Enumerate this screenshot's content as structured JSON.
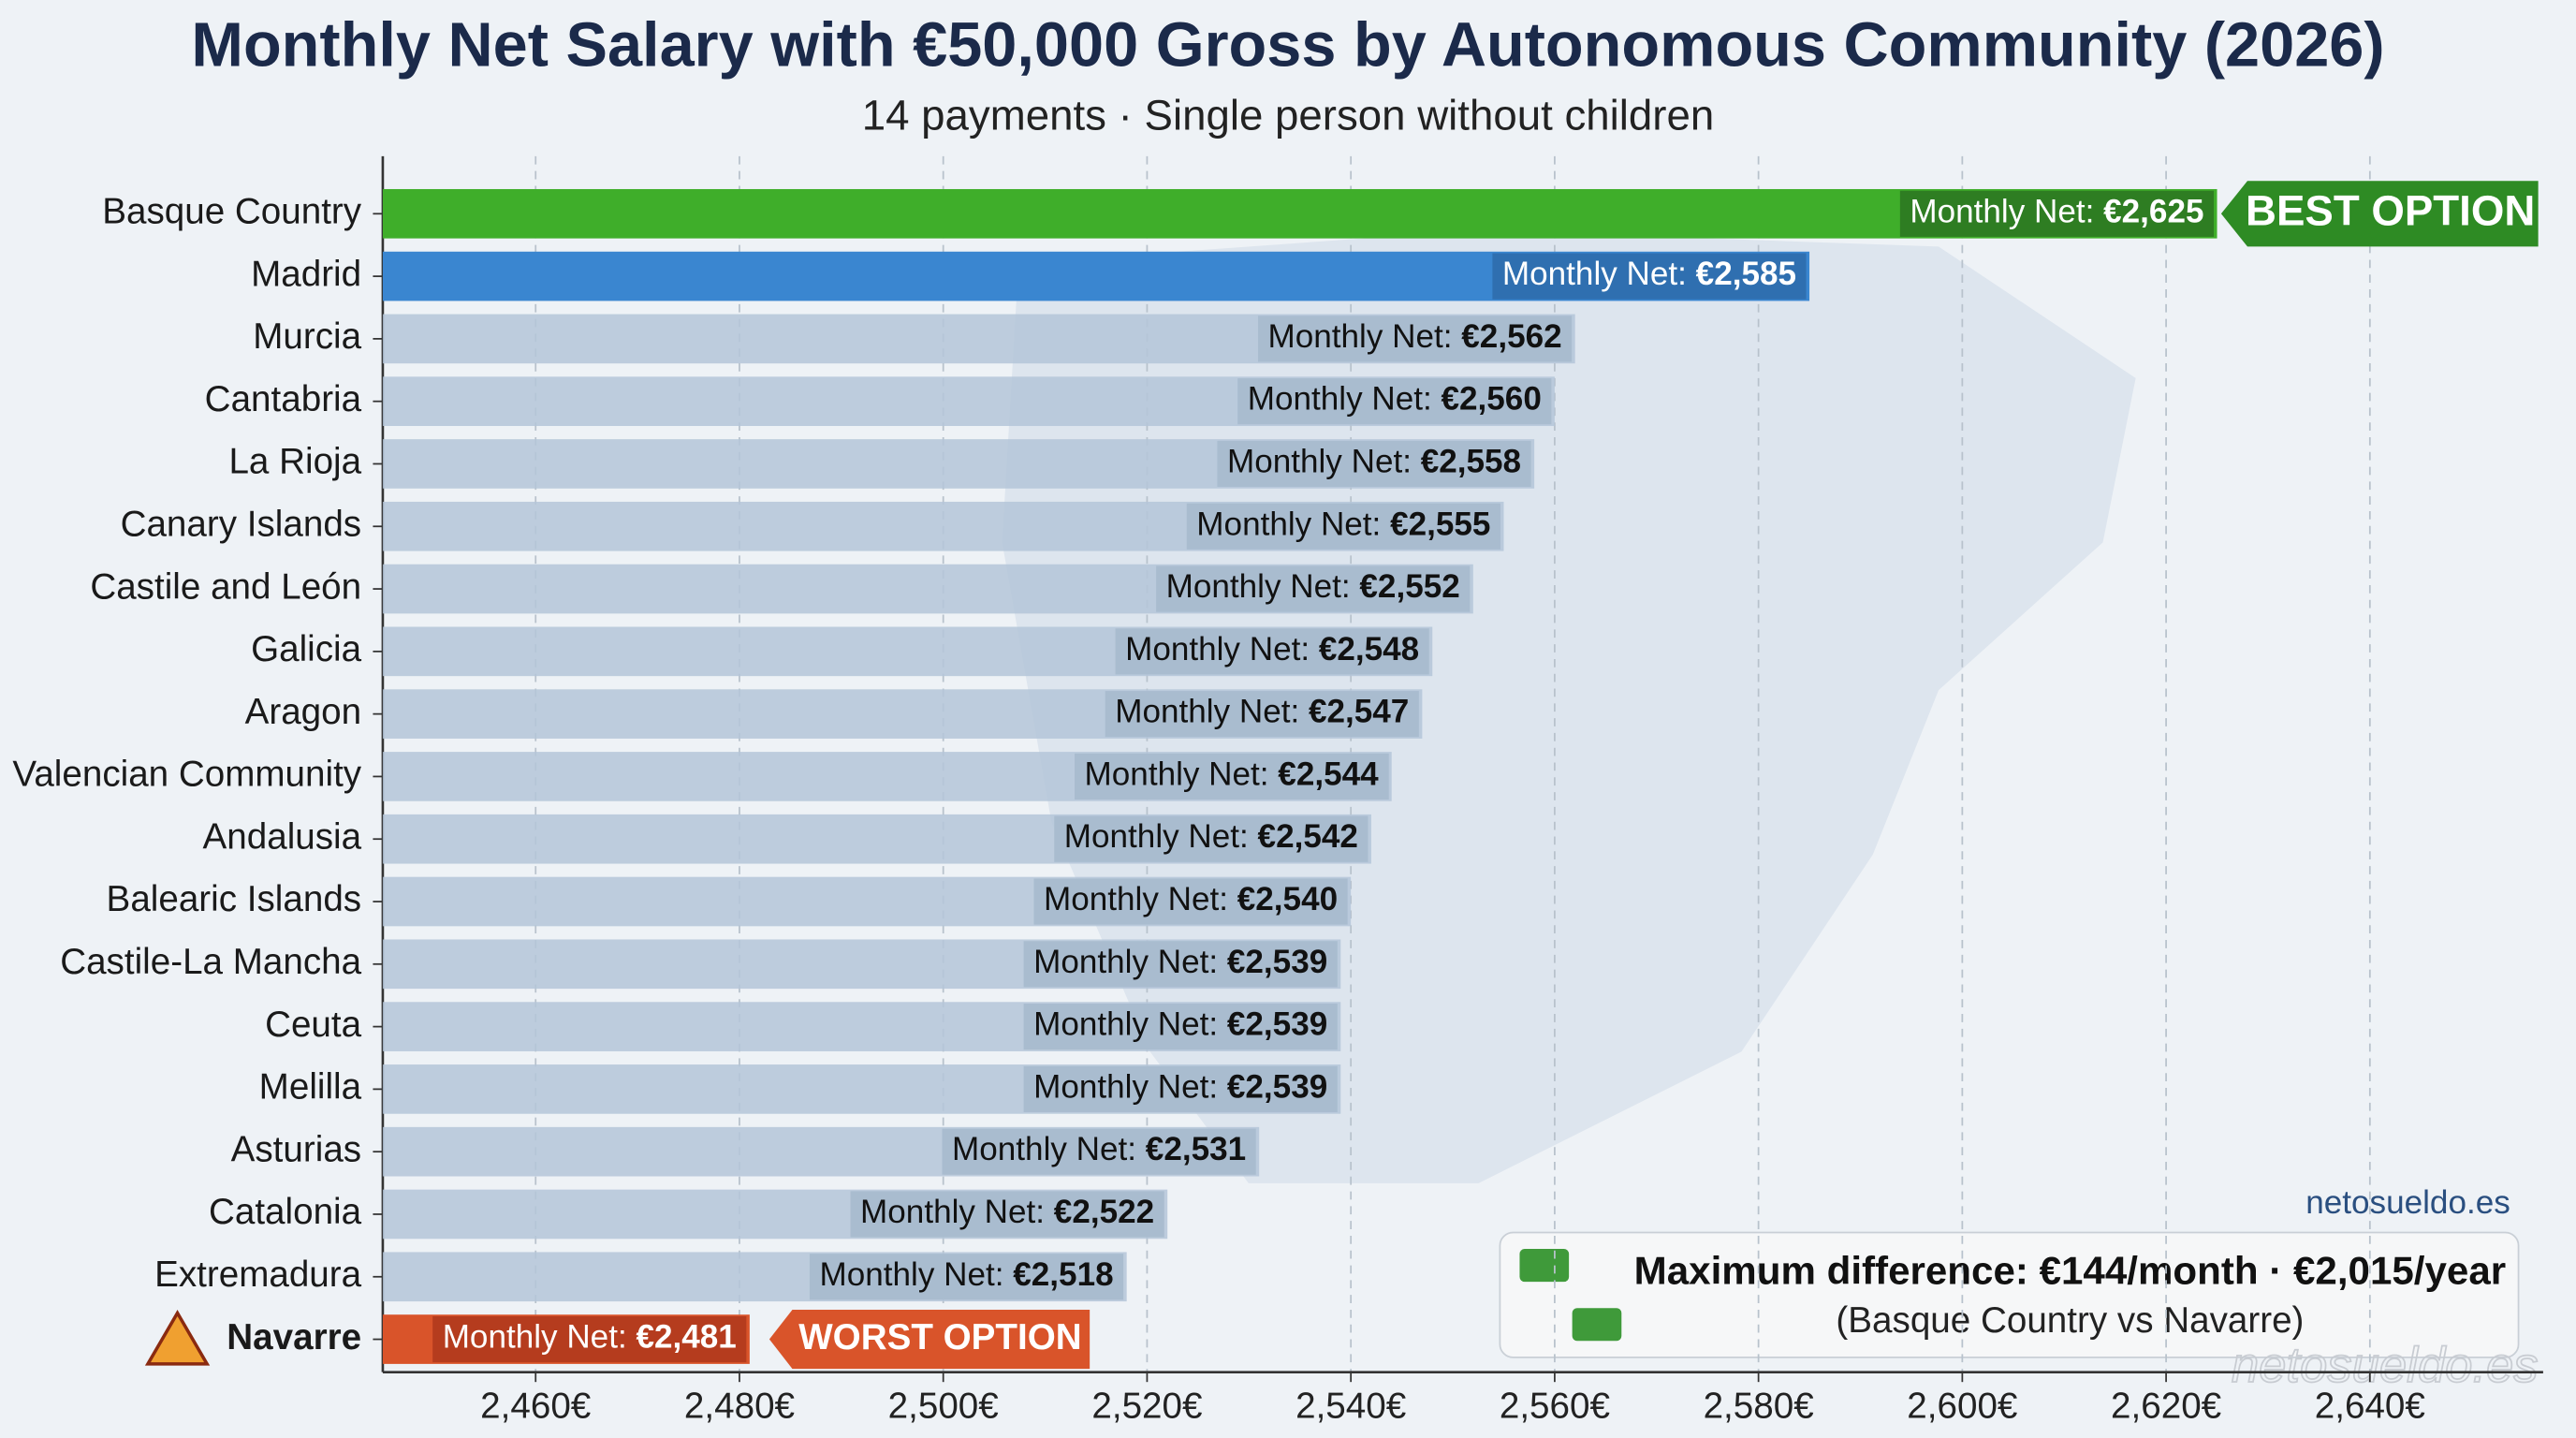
{
  "chart_data": {
    "type": "bar",
    "orientation": "horizontal",
    "title": "Monthly Net Salary with €50,000 Gross by Autonomous Community (2026)",
    "subtitle": "14 payments · Single person without children",
    "categories": [
      "Basque Country",
      "Madrid",
      "Murcia",
      "Cantabria",
      "La Rioja",
      "Canary Islands",
      "Castile and León",
      "Galicia",
      "Aragon",
      "Valencian Community",
      "Andalusia",
      "Balearic Islands",
      "Castile-La Mancha",
      "Ceuta",
      "Melilla",
      "Asturias",
      "Catalonia",
      "Extremadura",
      "Navarre"
    ],
    "values": [
      2625,
      2585,
      2562,
      2560,
      2558,
      2555,
      2552,
      2548,
      2547,
      2544,
      2542,
      2540,
      2539,
      2539,
      2539,
      2531,
      2522,
      2518,
      2481
    ],
    "value_label_prefix": "Monthly Net:",
    "value_labels": [
      "€2,625",
      "€2,585",
      "€2,562",
      "€2,560",
      "€2,558",
      "€2,555",
      "€2,552",
      "€2,548",
      "€2,547",
      "€2,544",
      "€2,542",
      "€2,540",
      "€2,539",
      "€2,539",
      "€2,539",
      "€2,531",
      "€2,522",
      "€2,518",
      "€2,481"
    ],
    "colors": [
      "#3fae2a",
      "#3a86d0",
      "#b4c6d8",
      "#b4c6d8",
      "#b4c6d8",
      "#b4c6d8",
      "#b4c6d8",
      "#b4c6d8",
      "#b4c6d8",
      "#b4c6d8",
      "#b4c6d8",
      "#b4c6d8",
      "#b4c6d8",
      "#b4c6d8",
      "#b4c6d8",
      "#b4c6d8",
      "#b4c6d8",
      "#b4c6d8",
      "#d9542a"
    ],
    "xlim": [
      2445,
      2657
    ],
    "xticks": [
      {
        "value": 2460,
        "label": "2,460€"
      },
      {
        "value": 2480,
        "label": "2,480€"
      },
      {
        "value": 2500,
        "label": "2,500€"
      },
      {
        "value": 2520,
        "label": "2,520€"
      },
      {
        "value": 2540,
        "label": "2,540€"
      },
      {
        "value": 2560,
        "label": "2,560€"
      },
      {
        "value": 2580,
        "label": "2,580€"
      },
      {
        "value": 2600,
        "label": "2,600€"
      },
      {
        "value": 2620,
        "label": "2,620€"
      },
      {
        "value": 2640,
        "label": "2,640€"
      }
    ],
    "grid": true,
    "annotations": {
      "best": "BEST OPTION",
      "worst": "WORST OPTION",
      "difference": "Maximum difference: €144/month · €2,015/year",
      "difference_note": "(Basque Country vs Navarre)"
    },
    "source": "netosueldo.es",
    "watermark": "netosueldo.es"
  }
}
